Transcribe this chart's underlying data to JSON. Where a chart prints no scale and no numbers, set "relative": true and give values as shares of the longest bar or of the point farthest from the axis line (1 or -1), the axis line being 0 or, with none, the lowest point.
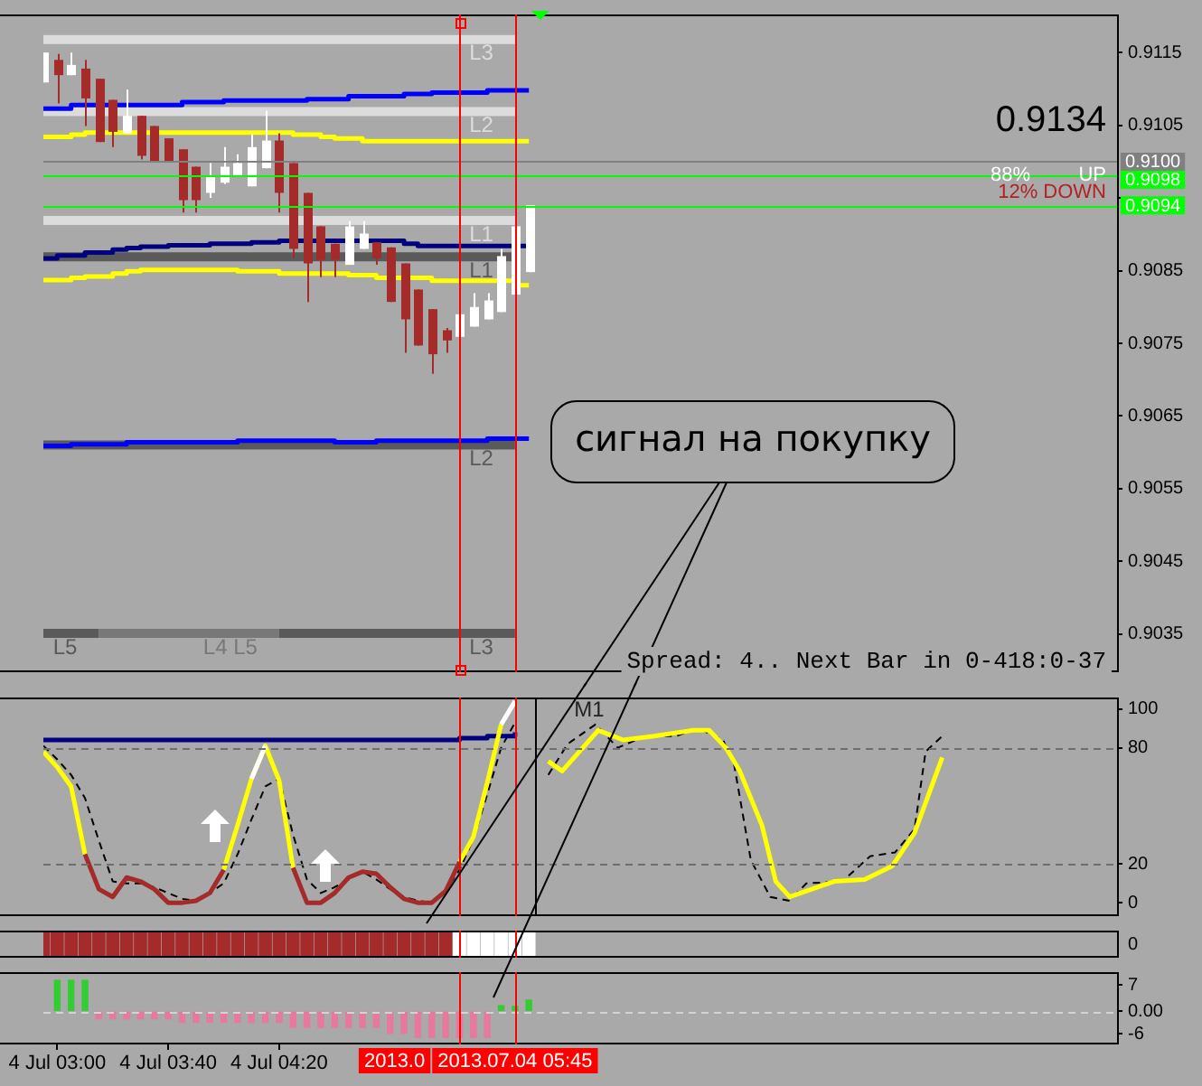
{
  "chart_data": [
    {
      "type": "candlestick",
      "x": [
        "2013-07-04T02:55",
        "2013-07-04T03:00",
        "2013-07-04T03:05",
        "2013-07-04T03:10",
        "2013-07-04T03:15",
        "2013-07-04T03:20",
        "2013-07-04T03:25",
        "2013-07-04T03:30",
        "2013-07-04T03:35",
        "2013-07-04T03:40",
        "2013-07-04T03:45",
        "2013-07-04T03:50",
        "2013-07-04T03:55",
        "2013-07-04T04:00",
        "2013-07-04T04:05",
        "2013-07-04T04:10",
        "2013-07-04T04:15",
        "2013-07-04T04:20",
        "2013-07-04T04:25",
        "2013-07-04T04:30",
        "2013-07-04T04:35",
        "2013-07-04T04:40",
        "2013-07-04T04:45",
        "2013-07-04T04:50",
        "2013-07-04T04:55",
        "2013-07-04T05:00",
        "2013-07-04T05:05",
        "2013-07-04T05:10",
        "2013-07-04T05:15",
        "2013-07-04T05:20",
        "2013-07-04T05:25",
        "2013-07-04T05:30",
        "2013-07-04T05:35",
        "2013-07-04T05:40",
        "2013-07-04T05:45",
        "2013-07-04T05:50"
      ],
      "ohlc": [
        [
          0.91109,
          0.9115,
          0.91109,
          0.9115
        ],
        [
          0.9114,
          0.91148,
          0.9108,
          0.91119
        ],
        [
          0.91119,
          0.9115,
          0.91119,
          0.91133
        ],
        [
          0.91128,
          0.9114,
          0.91049,
          0.91087
        ],
        [
          0.91114,
          0.91114,
          0.91027,
          0.91027
        ],
        [
          0.91085,
          0.91085,
          0.9102,
          0.91041
        ],
        [
          0.91039,
          0.91099,
          0.91039,
          0.91063
        ],
        [
          0.91063,
          0.91063,
          0.91003,
          0.91008
        ],
        [
          0.91049,
          0.91049,
          0.91,
          0.91
        ],
        [
          0.91032,
          0.91032,
          0.91,
          0.91
        ],
        [
          0.91017,
          0.91017,
          0.9093,
          0.90947
        ],
        [
          0.90993,
          0.90993,
          0.9093,
          0.90947
        ],
        [
          0.90957,
          0.90998,
          0.9095,
          0.90981
        ],
        [
          0.90971,
          0.9102,
          0.90969,
          0.90993
        ],
        [
          0.90981,
          0.9101,
          0.90981,
          0.90998
        ],
        [
          0.90966,
          0.91039,
          0.90966,
          0.9102
        ],
        [
          0.90991,
          0.9107,
          0.90991,
          0.91029
        ],
        [
          0.91029,
          0.91039,
          0.9093,
          0.90957
        ],
        [
          0.90998,
          0.90998,
          0.90867,
          0.9088
        ],
        [
          0.90957,
          0.90957,
          0.90807,
          0.9086
        ],
        [
          0.90911,
          0.90911,
          0.90841,
          0.90865
        ],
        [
          0.90887,
          0.90887,
          0.90841,
          0.90865
        ],
        [
          0.90858,
          0.90918,
          0.90858,
          0.90911
        ],
        [
          0.9088,
          0.90918,
          0.9088,
          0.90901
        ],
        [
          0.90889,
          0.90889,
          0.90858,
          0.90867
        ],
        [
          0.90882,
          0.90882,
          0.90807,
          0.90807
        ],
        [
          0.9086,
          0.9086,
          0.90737,
          0.90783
        ],
        [
          0.90824,
          0.90824,
          0.90747,
          0.90747
        ],
        [
          0.90797,
          0.90797,
          0.90708,
          0.90735
        ],
        [
          0.90768,
          0.90771,
          0.90737,
          0.90754
        ],
        [
          0.90759,
          0.9079,
          0.90759,
          0.9079
        ],
        [
          0.90773,
          0.90819,
          0.90773,
          0.908
        ],
        [
          0.90783,
          0.90819,
          0.90783,
          0.90809
        ],
        [
          0.90793,
          0.9088,
          0.90793,
          0.9087
        ],
        [
          0.90817,
          0.90911,
          0.90817,
          0.90911
        ],
        [
          0.90848,
          0.9094,
          0.90848,
          0.9094
        ]
      ],
      "colors": [
        "#ffffff",
        "#a52a2a",
        "#ffffff",
        "#a52a2a",
        "#a52a2a",
        "#a52a2a",
        "#ffffff",
        "#a52a2a",
        "#a52a2a",
        "#a52a2a",
        "#a52a2a",
        "#a52a2a",
        "#ffffff",
        "#ffffff",
        "#ffffff",
        "#ffffff",
        "#ffffff",
        "#a52a2a",
        "#a52a2a",
        "#a52a2a",
        "#a52a2a",
        "#a52a2a",
        "#ffffff",
        "#ffffff",
        "#a52a2a",
        "#a52a2a",
        "#a52a2a",
        "#a52a2a",
        "#a52a2a",
        "#a52a2a",
        "#ffffff",
        "#ffffff",
        "#ffffff",
        "#ffffff",
        "#ffffff",
        "#ffffff"
      ],
      "series": [
        {
          "type": "line",
          "name": "L3",
          "color": "#dcdcdc",
          "x": [
            "2013-07-04T02:55",
            "2013-07-04T05:45"
          ],
          "values": [
            0.91168,
            0.91168
          ]
        },
        {
          "type": "line",
          "name": "L2",
          "color": "#dcdcdc",
          "x": [
            "2013-07-04T02:55",
            "2013-07-04T05:45"
          ],
          "values": [
            0.91069,
            0.91069
          ]
        },
        {
          "type": "line",
          "name": "L1",
          "color": "#dcdcdc",
          "x": [
            "2013-07-04T02:55",
            "2013-07-04T05:45"
          ],
          "values": [
            0.90919,
            0.90919
          ]
        },
        {
          "type": "line",
          "name": "L1",
          "color": "#5a5a5a",
          "x": [
            "2013-07-04T02:55",
            "2013-07-04T05:45"
          ],
          "values": [
            0.90869,
            0.90869
          ]
        },
        {
          "type": "line",
          "name": "L2",
          "color": "#5a5a5a",
          "x": [
            "2013-07-04T02:55",
            "2013-07-04T05:45"
          ],
          "values": [
            0.9061,
            0.9061
          ]
        },
        {
          "type": "line",
          "name": "L5",
          "color": "#5a5a5a",
          "x": [
            "2013-07-04T02:55",
            "2013-07-04T03:15"
          ],
          "values": [
            0.90351,
            0.90351
          ]
        },
        {
          "type": "line",
          "name": "L4 L5",
          "color": "#787878",
          "x": [
            "2013-07-04T03:15",
            "2013-07-04T04:20"
          ],
          "values": [
            0.90351,
            0.90351
          ]
        },
        {
          "type": "line",
          "name": "L3",
          "color": "#5a5a5a",
          "x": [
            "2013-07-04T04:20",
            "2013-07-04T05:45"
          ],
          "values": [
            0.90351,
            0.90351
          ]
        },
        {
          "type": "step",
          "color": "#0000ff",
          "values": [
            0.91073,
            0.91073,
            0.91078,
            0.91078,
            0.91078,
            0.91078,
            0.91078,
            0.91078,
            0.91078,
            0.91078,
            0.91082,
            0.91082,
            0.91082,
            0.91084,
            0.91084,
            0.91084,
            0.91084,
            0.91084,
            0.91084,
            0.91086,
            0.91086,
            0.91086,
            0.9109,
            0.9109,
            0.9109,
            0.9109,
            0.91093,
            0.91093,
            0.91095,
            0.91095,
            0.91095,
            0.91095,
            0.91098,
            0.91098,
            0.91098,
            0.91098
          ]
        },
        {
          "type": "step",
          "color": "#ffff00",
          "values": [
            0.91034,
            0.91034,
            0.91037,
            0.9104,
            0.9104,
            0.9104,
            0.9104,
            0.9104,
            0.9104,
            0.9104,
            0.9104,
            0.9104,
            0.9104,
            0.9104,
            0.9104,
            0.9104,
            0.9104,
            0.9104,
            0.91037,
            0.91037,
            0.91034,
            0.91032,
            0.91032,
            0.91028,
            0.91028,
            0.91028,
            0.91028,
            0.91028,
            0.91028,
            0.91028,
            0.91028,
            0.91028,
            0.91028,
            0.91028,
            0.91028,
            0.91028
          ]
        },
        {
          "type": "step",
          "color": "#000080",
          "values": [
            0.90867,
            0.90871,
            0.90871,
            0.90875,
            0.90875,
            0.90879,
            0.90881,
            0.90883,
            0.90883,
            0.90885,
            0.90885,
            0.90885,
            0.90887,
            0.90887,
            0.90887,
            0.90889,
            0.90889,
            0.90891,
            0.90891,
            0.90891,
            0.90891,
            0.90891,
            0.90891,
            0.90891,
            0.90891,
            0.90891,
            0.90887,
            0.90884,
            0.90884,
            0.90884,
            0.90884,
            0.90884,
            0.90884,
            0.90884,
            0.90884,
            0.90884
          ]
        },
        {
          "type": "step",
          "color": "#ffff00",
          "values": [
            0.90837,
            0.90837,
            0.9084,
            0.90842,
            0.90842,
            0.90846,
            0.90849,
            0.90851,
            0.90851,
            0.90851,
            0.90851,
            0.90851,
            0.90851,
            0.90851,
            0.90849,
            0.90849,
            0.90849,
            0.90846,
            0.90846,
            0.90846,
            0.90846,
            0.90846,
            0.90844,
            0.90844,
            0.9084,
            0.9084,
            0.9084,
            0.9084,
            0.90836,
            0.90836,
            0.90836,
            0.90836,
            0.90836,
            0.90836,
            0.9083,
            0.9083
          ]
        },
        {
          "type": "step",
          "color": "#0000ff",
          "values": [
            0.90609,
            0.90609,
            0.90611,
            0.90611,
            0.90611,
            0.90611,
            0.90614,
            0.90614,
            0.90614,
            0.90614,
            0.90614,
            0.90614,
            0.90614,
            0.90614,
            0.90616,
            0.90616,
            0.90616,
            0.90616,
            0.90616,
            0.90616,
            0.90616,
            0.90614,
            0.90614,
            0.90614,
            0.90616,
            0.90616,
            0.90616,
            0.90616,
            0.90616,
            0.90616,
            0.90616,
            0.90616,
            0.90619,
            0.90619,
            0.90619,
            0.90619
          ]
        }
      ],
      "xlim": [
        "2013-07-04T02:55",
        "2013-07-04T09:22"
      ],
      "ylim": [
        0.903,
        0.912
      ],
      "yticks": [
        0.9035,
        0.9045,
        0.9055,
        0.9065,
        0.9075,
        0.9085,
        {
          "value": 0.9095,
          "label": null
        },
        0.9105,
        0.9115
      ],
      "tick_labels": "y",
      "ref_lines": [
        {
          "axis": "y",
          "value": 0.91,
          "label": "0.9100",
          "color": "#808080"
        },
        {
          "axis": "y",
          "value": 0.9098,
          "label": "0.9098",
          "color": "#00ff00"
        },
        {
          "axis": "y",
          "value": 0.9094,
          "label": "0.9094",
          "color": "#00ff00"
        },
        {
          "axis": "x",
          "value": "2013-07-04T05:25",
          "color": "#ff0000"
        },
        {
          "axis": "x",
          "value": "2013-07-04T05:45",
          "color": "#ff0000"
        }
      ],
      "annotations": [
        "0.9134",
        "88%",
        "UP",
        "12% DOWN",
        "Spread: 4.. Next Bar in 0-418:0-37",
        "сигнал на покупку"
      ]
    },
    {
      "type": "line",
      "x": [
        "2013-07-04T02:55",
        "2013-07-04T03:00",
        "2013-07-04T03:05",
        "2013-07-04T03:10",
        "2013-07-04T03:15",
        "2013-07-04T03:20",
        "2013-07-04T03:25",
        "2013-07-04T03:30",
        "2013-07-04T03:35",
        "2013-07-04T03:40",
        "2013-07-04T03:45",
        "2013-07-04T03:50",
        "2013-07-04T03:55",
        "2013-07-04T04:00",
        "2013-07-04T04:05",
        "2013-07-04T04:10",
        "2013-07-04T04:15",
        "2013-07-04T04:20",
        "2013-07-04T04:25",
        "2013-07-04T04:30",
        "2013-07-04T04:35",
        "2013-07-04T04:40",
        "2013-07-04T04:45",
        "2013-07-04T04:50",
        "2013-07-04T04:55",
        "2013-07-04T05:00",
        "2013-07-04T05:05",
        "2013-07-04T05:10",
        "2013-07-04T05:15",
        "2013-07-04T05:20",
        "2013-07-04T05:25",
        "2013-07-04T05:30",
        "2013-07-04T05:35",
        "2013-07-04T05:40",
        "2013-07-04T05:45"
      ],
      "series": [
        {
          "color": "#000000",
          "line_style": "dashed",
          "values": [
            81,
            74,
            66,
            54,
            32,
            11,
            10,
            10,
            8,
            5,
            2,
            1,
            5,
            10,
            25,
            43,
            60,
            64,
            35,
            12,
            5,
            8,
            12,
            16,
            12,
            7,
            3,
            1,
            0,
            6,
            17,
            33,
            56,
            80,
            93
          ]
        },
        {
          "type": "step",
          "color": "#000080",
          "values": [
            84,
            84,
            84,
            84,
            84,
            84,
            84,
            84,
            84,
            84,
            84,
            84,
            84,
            84,
            84,
            84,
            84,
            84,
            84,
            84,
            84,
            84,
            84,
            84,
            84,
            84,
            84,
            84,
            84,
            84,
            85,
            85,
            86,
            86,
            88
          ]
        },
        {
          "color": "#ffff00",
          "values": [
            78,
            70,
            60,
            25,
            null,
            null,
            null,
            null,
            null,
            null,
            null,
            null,
            null,
            17,
            40,
            64,
            81,
            63,
            18,
            null,
            null,
            null,
            null,
            null,
            null,
            null,
            null,
            null,
            null,
            null,
            21,
            34,
            62,
            92,
            null
          ]
        },
        {
          "color": "#a52a2a",
          "values": [
            null,
            null,
            null,
            25,
            7,
            3,
            13,
            11,
            7,
            0,
            0,
            1,
            5,
            17,
            null,
            null,
            null,
            null,
            18,
            0,
            0,
            5,
            13,
            16,
            15,
            8,
            2,
            0,
            0,
            6,
            21,
            null,
            null,
            null,
            null
          ]
        },
        {
          "color": "#ffffff",
          "values": [
            null,
            null,
            null,
            null,
            null,
            null,
            null,
            null,
            null,
            null,
            null,
            null,
            null,
            null,
            null,
            64,
            81,
            null,
            null,
            null,
            null,
            null,
            null,
            null,
            null,
            null,
            null,
            null,
            null,
            null,
            null,
            null,
            null,
            92,
            104
          ]
        },
        {
          "color": "#000000",
          "line_style": "dashed",
          "x": [
            "2013-07-04T05:57",
            "2013-07-04T06:04",
            "2013-07-04T06:14",
            "2013-07-04T06:22",
            "2013-07-04T06:32",
            "2013-07-04T06:43",
            "2013-07-04T06:51",
            "2013-07-04T07:00",
            "2013-07-04T07:04",
            "2013-07-04T07:10",
            "2013-07-04T07:17",
            "2013-07-04T07:24",
            "2013-07-04T07:30",
            "2013-07-04T07:43",
            "2013-07-04T07:53",
            "2013-07-04T08:02",
            "2013-07-04T08:09",
            "2013-07-04T08:13",
            "2013-07-04T08:19"
          ],
          "values": [
            66,
            82,
            92,
            80,
            86,
            86,
            90,
            84,
            71,
            22,
            3,
            1,
            10,
            11,
            24,
            26,
            38,
            78,
            86
          ]
        },
        {
          "color": "#ffff00",
          "x": [
            "2013-07-04T05:57",
            "2013-07-04T06:02",
            "2013-07-04T06:15",
            "2013-07-04T06:24",
            "2013-07-04T06:35",
            "2013-07-04T06:49",
            "2013-07-04T06:55",
            "2013-07-04T07:01",
            "2013-07-04T07:06",
            "2013-07-04T07:14",
            "2013-07-04T07:19",
            "2013-07-04T07:24",
            "2013-07-04T07:32",
            "2013-07-04T07:40",
            "2013-07-04T07:51",
            "2013-07-04T08:01",
            "2013-07-04T08:09",
            "2013-07-04T08:19"
          ],
          "values": [
            73,
            68,
            89,
            84,
            86,
            89,
            89,
            80,
            68,
            40,
            11,
            3,
            7,
            11,
            12,
            19,
            36,
            75
          ]
        }
      ],
      "xlim": [
        "2013-07-04T02:55",
        "2013-07-04T09:22"
      ],
      "ylim": [
        -6,
        105
      ],
      "yticks": [
        0,
        20,
        80,
        100
      ],
      "tick_labels": "y",
      "ref_lines": [
        {
          "axis": "y",
          "value": 80,
          "color": "#6e6e6e",
          "line_style": "dashed"
        },
        {
          "axis": "y",
          "value": 20,
          "color": "#6e6e6e",
          "line_style": "dashed"
        },
        {
          "axis": "x",
          "value": "2013-07-04T05:25",
          "color": "#ff0000"
        },
        {
          "axis": "x",
          "value": "2013-07-04T05:45",
          "color": "#ff0000"
        },
        {
          "axis": "x",
          "value": "2013-07-04T05:52",
          "label": "M1",
          "color": "#000000"
        }
      ]
    },
    {
      "type": "bar",
      "relative": true,
      "x": [
        "2013-07-04T02:55",
        "2013-07-04T03:00",
        "2013-07-04T03:05",
        "2013-07-04T03:10",
        "2013-07-04T03:15",
        "2013-07-04T03:20",
        "2013-07-04T03:25",
        "2013-07-04T03:30",
        "2013-07-04T03:35",
        "2013-07-04T03:40",
        "2013-07-04T03:45",
        "2013-07-04T03:50",
        "2013-07-04T03:55",
        "2013-07-04T04:00",
        "2013-07-04T04:05",
        "2013-07-04T04:10",
        "2013-07-04T04:15",
        "2013-07-04T04:20",
        "2013-07-04T04:25",
        "2013-07-04T04:30",
        "2013-07-04T04:35",
        "2013-07-04T04:40",
        "2013-07-04T04:45",
        "2013-07-04T04:50",
        "2013-07-04T04:55",
        "2013-07-04T05:00",
        "2013-07-04T05:05",
        "2013-07-04T05:10",
        "2013-07-04T05:15",
        "2013-07-04T05:20",
        "2013-07-04T05:25",
        "2013-07-04T05:30",
        "2013-07-04T05:35",
        "2013-07-04T05:40",
        "2013-07-04T05:45",
        "2013-07-04T05:50"
      ],
      "values": [
        1,
        1,
        1,
        1,
        1,
        1,
        1,
        1,
        1,
        1,
        1,
        1,
        1,
        1,
        1,
        1,
        1,
        1,
        1,
        1,
        1,
        1,
        1,
        1,
        1,
        1,
        1,
        1,
        1,
        1,
        1,
        1,
        1,
        1,
        1,
        1
      ],
      "colors": [
        "#a52a2a",
        "#a52a2a",
        "#a52a2a",
        "#a52a2a",
        "#a52a2a",
        "#a52a2a",
        "#a52a2a",
        "#a52a2a",
        "#a52a2a",
        "#a52a2a",
        "#a52a2a",
        "#a52a2a",
        "#a52a2a",
        "#a52a2a",
        "#a52a2a",
        "#a52a2a",
        "#a52a2a",
        "#a52a2a",
        "#a52a2a",
        "#a52a2a",
        "#a52a2a",
        "#a52a2a",
        "#a52a2a",
        "#a52a2a",
        "#a52a2a",
        "#a52a2a",
        "#a52a2a",
        "#a52a2a",
        "#a52a2a",
        "#a52a2a",
        "#ffffff",
        "#ffffff",
        "#ffffff",
        "#ffffff",
        "#ffffff",
        "#ffffff"
      ],
      "xlim": [
        "2013-07-04T02:55",
        "2013-07-04T09:22"
      ],
      "tick_labels": false,
      "ref_lines": [
        {
          "axis": "x",
          "value": "2013-07-04T05:25",
          "color": "#ff0000"
        },
        {
          "axis": "x",
          "value": "2013-07-04T05:45",
          "color": "#ff0000"
        }
      ],
      "annotations": [
        "0"
      ]
    },
    {
      "type": "bar",
      "x": [
        "2013-07-04T03:00",
        "2013-07-04T03:05",
        "2013-07-04T03:10",
        "2013-07-04T03:15",
        "2013-07-04T03:20",
        "2013-07-04T03:25",
        "2013-07-04T03:30",
        "2013-07-04T03:35",
        "2013-07-04T03:40",
        "2013-07-04T03:45",
        "2013-07-04T03:50",
        "2013-07-04T03:55",
        "2013-07-04T04:00",
        "2013-07-04T04:05",
        "2013-07-04T04:10",
        "2013-07-04T04:15",
        "2013-07-04T04:20",
        "2013-07-04T04:25",
        "2013-07-04T04:30",
        "2013-07-04T04:35",
        "2013-07-04T04:40",
        "2013-07-04T04:45",
        "2013-07-04T04:50",
        "2013-07-04T04:55",
        "2013-07-04T05:00",
        "2013-07-04T05:05",
        "2013-07-04T05:10",
        "2013-07-04T05:15",
        "2013-07-04T05:20",
        "2013-07-04T05:25",
        "2013-07-04T05:30",
        "2013-07-04T05:35",
        "2013-07-04T05:40",
        "2013-07-04T05:45",
        "2013-07-04T05:50"
      ],
      "values": [
        8.3,
        8.3,
        8.3,
        -2,
        -2,
        -2,
        -2,
        -2,
        -2,
        -3,
        -3,
        -3,
        -3,
        -3,
        -3,
        -3,
        -3,
        -4.3,
        -4.3,
        -4.3,
        -4.3,
        -4.3,
        -4.3,
        -4.3,
        -5.9,
        -5.9,
        -7,
        -7,
        -7,
        -7,
        -7,
        -7,
        1.5,
        1.3,
        3
      ],
      "colors": [
        "#32cd32",
        "#32cd32",
        "#32cd32",
        "#e6799c",
        "#e6799c",
        "#e6799c",
        "#e6799c",
        "#e6799c",
        "#e6799c",
        "#e6799c",
        "#e6799c",
        "#e6799c",
        "#e6799c",
        "#e6799c",
        "#e6799c",
        "#e6799c",
        "#e6799c",
        "#e6799c",
        "#e6799c",
        "#e6799c",
        "#e6799c",
        "#e6799c",
        "#e6799c",
        "#e6799c",
        "#e6799c",
        "#e6799c",
        "#e6799c",
        "#e6799c",
        "#e6799c",
        "#e6799c",
        "#e6799c",
        "#e6799c",
        "#32cd32",
        "#32cd32",
        "#32cd32"
      ],
      "xlim": [
        "2013-07-04T02:55",
        "2013-07-04T09:22"
      ],
      "xticks": [
        {
          "value": "2013-07-04T03:00",
          "label": "4 Jul 03:00"
        },
        {
          "value": "2013-07-04T03:40",
          "label": "4 Jul 03:40"
        },
        {
          "value": "2013-07-04T04:20",
          "label": "4 Jul 04:20"
        }
      ],
      "ylim": [
        -8.4,
        10
      ],
      "yticks": [
        -6,
        {
          "value": 0,
          "label": "0.00"
        },
        7
      ],
      "ref_lines": [
        {
          "axis": "y",
          "value": 0,
          "color": "#d3d3d3",
          "line_style": "dashed"
        },
        {
          "axis": "x",
          "value": "2013-07-04T05:25",
          "label": "2013.0",
          "color": "#ff0000"
        },
        {
          "axis": "x",
          "value": "2013-07-04T05:45",
          "label": "2013.07.04 05:45",
          "color": "#ff0000"
        }
      ]
    }
  ]
}
